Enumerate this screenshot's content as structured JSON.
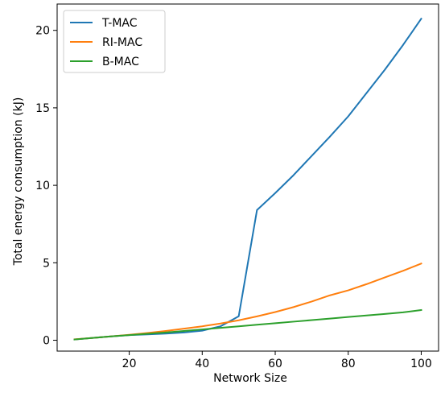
{
  "chart_data": {
    "type": "line",
    "title": "",
    "xlabel": "Network Size",
    "ylabel": "Total energy consumption (kJ)",
    "xlim": [
      0.25,
      104.75
    ],
    "ylim": [
      -0.7,
      21.7
    ],
    "xticks": [
      20,
      40,
      60,
      80,
      100
    ],
    "yticks": [
      0,
      5,
      10,
      15,
      20
    ],
    "grid": false,
    "legend_position": "top-left",
    "series": [
      {
        "name": "T-MAC",
        "color": "#1f77b4",
        "x": [
          5,
          10,
          15,
          20,
          25,
          30,
          35,
          40,
          45,
          50,
          55,
          60,
          65,
          70,
          75,
          80,
          85,
          90,
          95,
          100
        ],
        "y": [
          0.05,
          0.15,
          0.25,
          0.33,
          0.38,
          0.43,
          0.5,
          0.62,
          0.9,
          1.55,
          8.4,
          9.5,
          10.65,
          11.9,
          13.15,
          14.45,
          15.95,
          17.45,
          19.05,
          20.75
        ]
      },
      {
        "name": "RI-MAC",
        "color": "#ff7f0e",
        "x": [
          5,
          10,
          15,
          20,
          25,
          30,
          35,
          40,
          45,
          50,
          55,
          60,
          65,
          70,
          75,
          80,
          85,
          90,
          95,
          100
        ],
        "y": [
          0.06,
          0.15,
          0.25,
          0.35,
          0.47,
          0.6,
          0.75,
          0.9,
          1.08,
          1.29,
          1.54,
          1.82,
          2.14,
          2.5,
          2.9,
          3.22,
          3.62,
          4.05,
          4.48,
          4.95
        ]
      },
      {
        "name": "B-MAC",
        "color": "#2ca02c",
        "x": [
          5,
          10,
          15,
          20,
          25,
          30,
          35,
          40,
          45,
          50,
          55,
          60,
          65,
          70,
          75,
          80,
          85,
          90,
          95,
          100
        ],
        "y": [
          0.05,
          0.15,
          0.25,
          0.33,
          0.42,
          0.5,
          0.6,
          0.7,
          0.8,
          0.9,
          1.0,
          1.1,
          1.2,
          1.3,
          1.4,
          1.5,
          1.6,
          1.7,
          1.8,
          1.95
        ]
      }
    ]
  }
}
